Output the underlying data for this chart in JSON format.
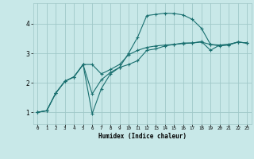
{
  "xlabel": "Humidex (Indice chaleur)",
  "bg_color": "#c8e8e8",
  "grid_color": "#a0c8c8",
  "line_color": "#1a7070",
  "xlim": [
    -0.5,
    23.5
  ],
  "ylim": [
    0.6,
    4.7
  ],
  "xticks": [
    0,
    1,
    2,
    3,
    4,
    5,
    6,
    7,
    8,
    9,
    10,
    11,
    12,
    13,
    14,
    15,
    16,
    17,
    18,
    19,
    20,
    21,
    22,
    23
  ],
  "yticks": [
    1,
    2,
    3,
    4
  ],
  "curve1_x": [
    0,
    1,
    2,
    3,
    4,
    5,
    6,
    7,
    8,
    9,
    10,
    11,
    12,
    13,
    14,
    15,
    16,
    17,
    18,
    19,
    20,
    21,
    22,
    23
  ],
  "curve1_y": [
    1.0,
    1.05,
    1.65,
    2.05,
    2.2,
    2.62,
    2.62,
    2.3,
    2.45,
    2.62,
    2.95,
    3.1,
    3.2,
    3.25,
    3.28,
    3.3,
    3.33,
    3.35,
    3.38,
    3.3,
    3.28,
    3.3,
    3.38,
    3.35
  ],
  "curve2_x": [
    0,
    1,
    2,
    3,
    4,
    5,
    6,
    7,
    8,
    9,
    10,
    11,
    12,
    13,
    14,
    15,
    16,
    17,
    18,
    19,
    20,
    21,
    22,
    23
  ],
  "curve2_y": [
    1.0,
    1.05,
    1.65,
    2.05,
    2.2,
    2.62,
    1.62,
    2.1,
    2.35,
    2.52,
    3.0,
    3.55,
    4.28,
    4.32,
    4.36,
    4.35,
    4.3,
    4.15,
    3.85,
    3.3,
    3.25,
    3.28,
    3.38,
    3.35
  ],
  "curve3_x": [
    0,
    1,
    2,
    3,
    4,
    5,
    6,
    7,
    8,
    9,
    10,
    11,
    12,
    13,
    14,
    15,
    16,
    17,
    18,
    19,
    20,
    21,
    22,
    23
  ],
  "curve3_y": [
    1.0,
    1.05,
    1.65,
    2.05,
    2.2,
    2.62,
    0.95,
    1.8,
    2.3,
    2.52,
    2.62,
    2.75,
    3.1,
    3.15,
    3.25,
    3.3,
    3.35,
    3.35,
    3.4,
    3.1,
    3.28,
    3.3,
    3.38,
    3.35
  ]
}
